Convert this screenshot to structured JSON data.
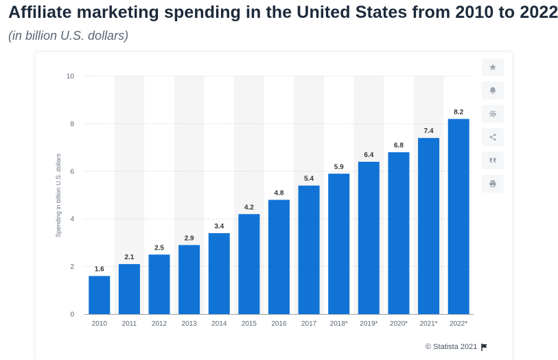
{
  "header": {
    "title": "Affiliate marketing spending in the United States from 2010 to 2022",
    "subtitle": "(in billion U.S. dollars)"
  },
  "footer": {
    "credit": "© Statista 2021",
    "flag_icon": "flag-icon"
  },
  "toolbar": {
    "icons": [
      "star-icon",
      "bell-icon",
      "gear-icon",
      "share-icon",
      "quote-icon",
      "print-icon"
    ]
  },
  "colors": {
    "bar": "#1173d6",
    "band": "#f5f5f5",
    "grid": "#c8c8c8",
    "axis_text": "#5a6470",
    "label_text": "#333333"
  },
  "chart_data": {
    "type": "bar",
    "categories": [
      "2010",
      "2011",
      "2012",
      "2013",
      "2014",
      "2015",
      "2016",
      "2017",
      "2018*",
      "2019*",
      "2020*",
      "2021*",
      "2022*"
    ],
    "values": [
      1.6,
      2.1,
      2.5,
      2.9,
      3.4,
      4.2,
      4.8,
      5.4,
      5.9,
      6.4,
      6.8,
      7.4,
      8.2
    ],
    "data_labels": [
      "1.6",
      "2.1",
      "2.5",
      "2.9",
      "3.4",
      "4.2",
      "4.8",
      "5.4",
      "5.9",
      "6.4",
      "6.8",
      "7.4",
      "8.2"
    ],
    "ylabel": "Spending in billion U.S. dollars",
    "xlabel": "",
    "ylim": [
      0,
      10
    ],
    "yticks": [
      0,
      2,
      4,
      6,
      8,
      10
    ],
    "ytick_labels": [
      "0",
      "2",
      "4",
      "6",
      "8",
      "10"
    ],
    "grid": true,
    "alternating_bands": true
  }
}
